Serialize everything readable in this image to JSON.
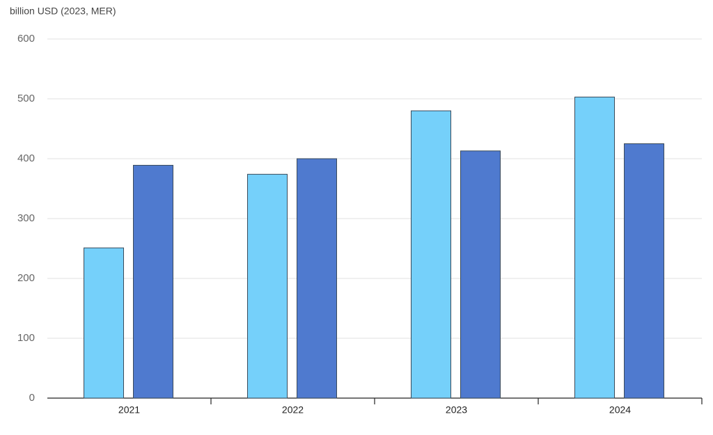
{
  "chart_data": {
    "type": "bar",
    "y_axis_label": "billion USD (2023, MER)",
    "categories": [
      "2021",
      "2022",
      "2023",
      "2024"
    ],
    "series": [
      {
        "color": "#75d0fa",
        "values": [
          251,
          374,
          480,
          503
        ]
      },
      {
        "color": "#4f7acf",
        "values": [
          389,
          400,
          413,
          425
        ]
      }
    ],
    "ylim": [
      0,
      600
    ],
    "yticks": [
      0,
      100,
      200,
      300,
      400,
      500,
      600
    ],
    "grid": true
  }
}
